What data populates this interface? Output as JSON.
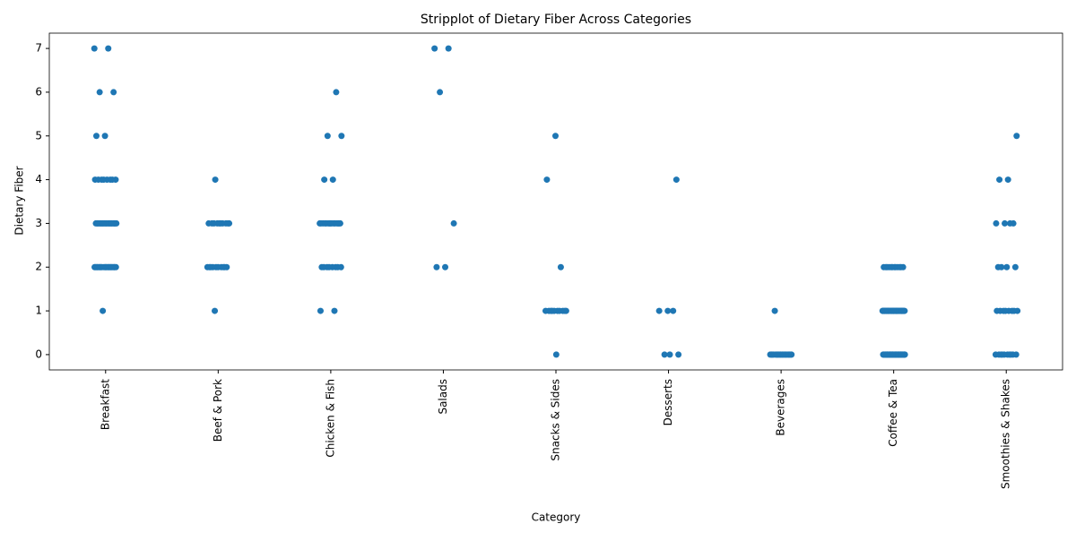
{
  "chart_data": {
    "type": "strip",
    "title": "Stripplot of Dietary Fiber Across Categories",
    "x_label": "Category",
    "y_label": "Dietary Fiber",
    "categories": [
      "Breakfast",
      "Beef & Pork",
      "Chicken & Fish",
      "Salads",
      "Snacks & Sides",
      "Desserts",
      "Beverages",
      "Coffee & Tea",
      "Smoothies & Shakes"
    ],
    "values": [
      [
        7,
        7,
        6,
        6,
        5,
        5,
        4,
        4,
        4,
        4,
        4,
        4,
        4,
        4,
        3,
        3,
        3,
        3,
        3,
        3,
        3,
        3,
        3,
        3,
        3,
        3,
        3,
        3,
        3,
        3,
        3,
        3,
        3,
        3,
        2,
        2,
        2,
        2,
        2,
        2,
        2,
        2,
        2,
        2,
        2,
        2,
        2,
        2,
        2,
        2,
        2,
        2,
        2,
        2,
        1
      ],
      [
        4,
        3,
        3,
        3,
        3,
        3,
        3,
        3,
        3,
        3,
        3,
        2,
        2,
        2,
        2,
        2,
        2,
        2,
        2,
        2,
        2,
        1
      ],
      [
        6,
        5,
        5,
        4,
        4,
        3,
        3,
        3,
        3,
        3,
        3,
        3,
        3,
        3,
        3,
        3,
        3,
        3,
        3,
        3,
        2,
        2,
        2,
        2,
        2,
        2,
        2,
        2,
        1,
        1
      ],
      [
        7,
        7,
        6,
        3,
        2,
        2
      ],
      [
        5,
        4,
        2,
        1,
        1,
        1,
        1,
        1,
        1,
        1,
        1,
        1,
        1,
        0
      ],
      [
        4,
        1,
        1,
        1,
        0,
        0,
        0
      ],
      [
        1,
        0,
        0,
        0,
        0,
        0,
        0,
        0,
        0,
        0,
        0,
        0,
        0,
        0,
        0,
        0,
        0,
        0,
        0,
        0,
        0
      ],
      [
        2,
        2,
        2,
        2,
        2,
        2,
        2,
        2,
        2,
        2,
        2,
        2,
        1,
        1,
        1,
        1,
        1,
        1,
        1,
        1,
        1,
        1,
        1,
        1,
        1,
        1,
        1,
        1,
        1,
        1,
        1,
        1,
        1,
        1,
        1,
        1,
        1,
        1,
        1,
        1,
        1,
        1,
        1,
        1,
        1,
        1,
        1,
        1,
        1,
        1,
        1,
        1,
        0,
        0,
        0,
        0,
        0,
        0,
        0,
        0,
        0,
        0,
        0,
        0,
        0,
        0,
        0,
        0,
        0,
        0,
        0,
        0,
        0,
        0,
        0,
        0,
        0,
        0,
        0,
        0,
        0,
        0,
        0,
        0,
        0,
        0,
        0,
        0,
        0,
        0,
        0,
        0,
        0
      ],
      [
        5,
        4,
        4,
        3,
        3,
        3,
        3,
        2,
        2,
        2,
        2,
        1,
        1,
        1,
        1,
        1,
        1,
        1,
        1,
        0,
        0,
        0,
        0,
        0,
        0,
        0,
        0,
        0,
        0
      ]
    ],
    "color": "#1f77b4",
    "ylim": [
      -0.35,
      7.35
    ],
    "yticks": [
      0,
      1,
      2,
      3,
      4,
      5,
      6,
      7
    ]
  }
}
